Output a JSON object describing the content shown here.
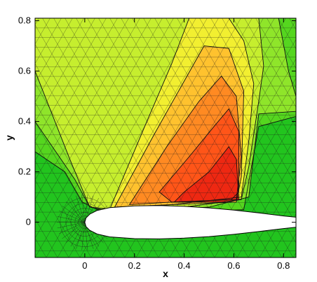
{
  "chart_data": {
    "type": "heatmap",
    "title": "",
    "xlabel": "x",
    "ylabel": "y",
    "xlim": [
      -0.2,
      0.85
    ],
    "ylim": [
      -0.14,
      0.81
    ],
    "x_ticks": [
      0,
      0.2,
      0.4,
      0.6,
      0.8
    ],
    "y_ticks": [
      0,
      0.2,
      0.4,
      0.6,
      0.8
    ],
    "x_tick_labels": [
      "0",
      "0.2",
      "0.4",
      "0.6",
      "0.8"
    ],
    "y_tick_labels": [
      "0",
      "0.2",
      "0.4",
      "0.6",
      "0.8"
    ],
    "colormap": [
      "#22c41e",
      "#55d61f",
      "#8fe52a",
      "#c6ee2e",
      "#f2ef30",
      "#ffc22e",
      "#ff8a22",
      "#ff5518",
      "#ee2812"
    ],
    "contour_levels": [
      {
        "level": 0,
        "color": "#22c41e",
        "points": [
          [
            -0.2,
            0.81
          ],
          [
            0.85,
            0.81
          ],
          [
            0.85,
            -0.14
          ],
          [
            -0.2,
            -0.14
          ]
        ]
      },
      {
        "level": 1,
        "color": "#55d61f",
        "points": [
          [
            -0.2,
            0.81
          ],
          [
            0.85,
            0.81
          ],
          [
            0.85,
            0.42
          ],
          [
            0.7,
            0.38
          ],
          [
            0.64,
            0.05
          ],
          [
            0.2,
            0.03
          ],
          [
            0.05,
            0.05
          ],
          [
            -0.01,
            0.08
          ],
          [
            -0.08,
            0.2
          ],
          [
            -0.2,
            0.28
          ]
        ]
      },
      {
        "level": 2,
        "color": "#8fe52a",
        "points": [
          [
            -0.2,
            0.81
          ],
          [
            0.78,
            0.81
          ],
          [
            0.82,
            0.6
          ],
          [
            0.85,
            0.5
          ],
          [
            0.85,
            0.44
          ],
          [
            0.7,
            0.43
          ],
          [
            0.66,
            0.1
          ],
          [
            0.5,
            0.06
          ],
          [
            0.12,
            0.04
          ],
          [
            0.02,
            0.06
          ],
          [
            -0.04,
            0.17
          ],
          [
            -0.2,
            0.4
          ]
        ]
      },
      {
        "level": 3,
        "color": "#c6ee2e",
        "points": [
          [
            -0.2,
            0.81
          ],
          [
            0.7,
            0.81
          ],
          [
            0.72,
            0.62
          ],
          [
            0.7,
            0.48
          ],
          [
            0.66,
            0.22
          ],
          [
            0.63,
            0.09
          ],
          [
            0.4,
            0.06
          ],
          [
            0.12,
            0.05
          ],
          [
            0.02,
            0.06
          ],
          [
            -0.06,
            0.25
          ],
          [
            -0.2,
            0.6
          ]
        ]
      },
      {
        "level": 4,
        "color": "#f2ef30",
        "points": [
          [
            0.42,
            0.81
          ],
          [
            0.58,
            0.81
          ],
          [
            0.64,
            0.72
          ],
          [
            0.68,
            0.55
          ],
          [
            0.66,
            0.32
          ],
          [
            0.63,
            0.1
          ],
          [
            0.35,
            0.07
          ],
          [
            0.1,
            0.05
          ],
          [
            0.25,
            0.4
          ],
          [
            0.35,
            0.63
          ]
        ]
      },
      {
        "level": 5,
        "color": "#ffc22e",
        "points": [
          [
            0.48,
            0.7
          ],
          [
            0.58,
            0.69
          ],
          [
            0.64,
            0.52
          ],
          [
            0.63,
            0.18
          ],
          [
            0.61,
            0.08
          ],
          [
            0.35,
            0.07
          ],
          [
            0.12,
            0.06
          ],
          [
            0.28,
            0.35
          ],
          [
            0.4,
            0.56
          ]
        ]
      },
      {
        "level": 6,
        "color": "#ff8a22",
        "points": [
          [
            0.55,
            0.58
          ],
          [
            0.61,
            0.5
          ],
          [
            0.63,
            0.26
          ],
          [
            0.61,
            0.09
          ],
          [
            0.35,
            0.08
          ],
          [
            0.18,
            0.07
          ],
          [
            0.33,
            0.3
          ],
          [
            0.46,
            0.48
          ]
        ]
      },
      {
        "level": 7,
        "color": "#ff5518",
        "points": [
          [
            0.58,
            0.45
          ],
          [
            0.62,
            0.36
          ],
          [
            0.62,
            0.12
          ],
          [
            0.59,
            0.09
          ],
          [
            0.35,
            0.08
          ],
          [
            0.3,
            0.12
          ],
          [
            0.42,
            0.26
          ],
          [
            0.52,
            0.38
          ]
        ]
      },
      {
        "level": 8,
        "color": "#ee2812",
        "points": [
          [
            0.58,
            0.3
          ],
          [
            0.61,
            0.25
          ],
          [
            0.62,
            0.09
          ],
          [
            0.56,
            0.08
          ],
          [
            0.36,
            0.08
          ],
          [
            0.4,
            0.12
          ],
          [
            0.5,
            0.2
          ]
        ]
      }
    ],
    "airfoil": {
      "upper": [
        [
          0,
          0
        ],
        [
          0.005,
          0.017
        ],
        [
          0.02,
          0.032
        ],
        [
          0.05,
          0.047
        ],
        [
          0.1,
          0.058
        ],
        [
          0.2,
          0.065
        ],
        [
          0.3,
          0.066
        ],
        [
          0.4,
          0.063
        ],
        [
          0.5,
          0.057
        ],
        [
          0.6,
          0.048
        ],
        [
          0.7,
          0.037
        ],
        [
          0.8,
          0.025
        ],
        [
          0.85,
          0.02
        ]
      ],
      "lower": [
        [
          0,
          0
        ],
        [
          0.005,
          -0.017
        ],
        [
          0.02,
          -0.032
        ],
        [
          0.05,
          -0.047
        ],
        [
          0.1,
          -0.058
        ],
        [
          0.2,
          -0.065
        ],
        [
          0.3,
          -0.066
        ],
        [
          0.4,
          -0.063
        ],
        [
          0.5,
          -0.057
        ],
        [
          0.6,
          -0.048
        ],
        [
          0.7,
          -0.037
        ],
        [
          0.8,
          -0.025
        ],
        [
          0.85,
          -0.02
        ]
      ],
      "color": "#ffffff"
    },
    "mesh": {
      "show": true,
      "color": "#1a1a1a",
      "opacity": 0.55
    },
    "grid": false,
    "legend": "none"
  }
}
